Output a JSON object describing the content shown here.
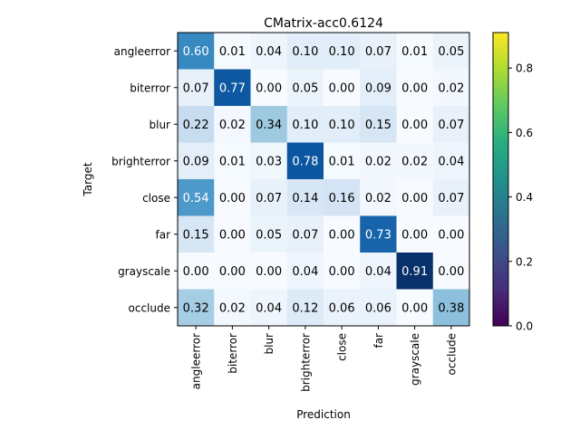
{
  "chart_data": {
    "type": "heatmap",
    "title": "CMatrix-acc0.6124",
    "xlabel": "Prediction",
    "ylabel": "Target",
    "labels": [
      "angleerror",
      "biterror",
      "blur",
      "brighterror",
      "close",
      "far",
      "grayscale",
      "occlude"
    ],
    "matrix": [
      [
        0.6,
        0.01,
        0.04,
        0.1,
        0.1,
        0.07,
        0.01,
        0.05
      ],
      [
        0.07,
        0.77,
        0.0,
        0.05,
        0.0,
        0.09,
        0.0,
        0.02
      ],
      [
        0.22,
        0.02,
        0.34,
        0.1,
        0.1,
        0.15,
        0.0,
        0.07
      ],
      [
        0.09,
        0.01,
        0.03,
        0.78,
        0.01,
        0.02,
        0.02,
        0.04
      ],
      [
        0.54,
        0.0,
        0.07,
        0.14,
        0.16,
        0.02,
        0.0,
        0.07
      ],
      [
        0.15,
        0.0,
        0.05,
        0.07,
        0.0,
        0.73,
        0.0,
        0.0
      ],
      [
        0.0,
        0.0,
        0.0,
        0.04,
        0.0,
        0.04,
        0.91,
        0.0
      ],
      [
        0.32,
        0.02,
        0.04,
        0.12,
        0.06,
        0.06,
        0.0,
        0.38
      ]
    ],
    "heatmap_colormap": "Blues",
    "colorbar": {
      "colormap": "viridis",
      "range": [
        0,
        0.91
      ],
      "ticks": [
        "0.0",
        "0.2",
        "0.4",
        "0.6",
        "0.8"
      ],
      "placement": "right"
    },
    "grid": false
  }
}
